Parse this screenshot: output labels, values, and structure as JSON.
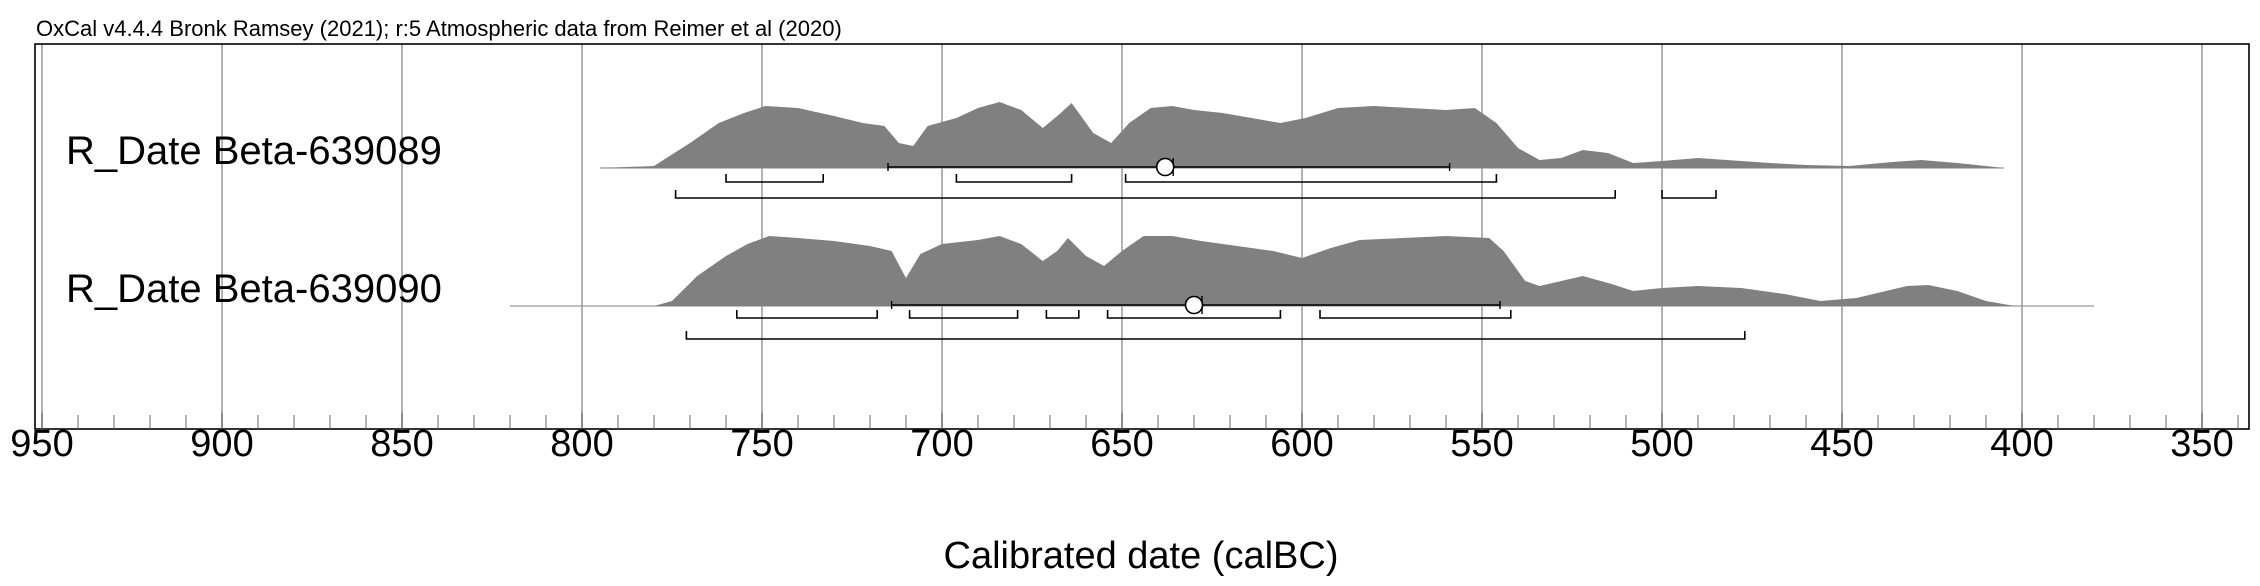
{
  "header": "OxCal v4.4.4 Bronk Ramsey (2021); r:5 Atmospheric data from Reimer et al (2020)",
  "chart_data": {
    "type": "area",
    "title": "",
    "xlabel": "Calibrated date (calBC)",
    "ylabel": "",
    "x_reversed": true,
    "xlim": [
      952,
      336
    ],
    "major_ticks": [
      950,
      900,
      850,
      800,
      750,
      700,
      650,
      600,
      550,
      500,
      450,
      400,
      350
    ],
    "minor_tick_step": 10,
    "grid": true,
    "colors": {
      "distribution": "#808080",
      "gridline": "#808080",
      "axis": "#000000",
      "range": "#000000"
    },
    "series": [
      {
        "name": "R_Date Beta-639089",
        "baseline_range": [
          795,
          405
        ],
        "distribution": [
          [
            795,
            0
          ],
          [
            780,
            0.02
          ],
          [
            770,
            0.25
          ],
          [
            762,
            0.45
          ],
          [
            755,
            0.55
          ],
          [
            749,
            0.62
          ],
          [
            740,
            0.6
          ],
          [
            730,
            0.52
          ],
          [
            722,
            0.45
          ],
          [
            716,
            0.42
          ],
          [
            712,
            0.25
          ],
          [
            708,
            0.22
          ],
          [
            704,
            0.42
          ],
          [
            696,
            0.5
          ],
          [
            690,
            0.6
          ],
          [
            684,
            0.66
          ],
          [
            678,
            0.58
          ],
          [
            672,
            0.4
          ],
          [
            667,
            0.55
          ],
          [
            664,
            0.65
          ],
          [
            658,
            0.35
          ],
          [
            653,
            0.25
          ],
          [
            648,
            0.45
          ],
          [
            642,
            0.6
          ],
          [
            636,
            0.62
          ],
          [
            630,
            0.58
          ],
          [
            622,
            0.55
          ],
          [
            614,
            0.5
          ],
          [
            606,
            0.45
          ],
          [
            599,
            0.5
          ],
          [
            590,
            0.6
          ],
          [
            580,
            0.62
          ],
          [
            570,
            0.6
          ],
          [
            560,
            0.58
          ],
          [
            552,
            0.6
          ],
          [
            546,
            0.45
          ],
          [
            540,
            0.2
          ],
          [
            534,
            0.08
          ],
          [
            528,
            0.1
          ],
          [
            522,
            0.18
          ],
          [
            515,
            0.15
          ],
          [
            508,
            0.05
          ],
          [
            500,
            0.07
          ],
          [
            490,
            0.1
          ],
          [
            482,
            0.08
          ],
          [
            470,
            0.05
          ],
          [
            460,
            0.03
          ],
          [
            448,
            0.02
          ],
          [
            436,
            0.06
          ],
          [
            428,
            0.08
          ],
          [
            418,
            0.05
          ],
          [
            410,
            0.02
          ],
          [
            405,
            0
          ]
        ],
        "ranges_68_2": [
          [
            760,
            733
          ],
          [
            696,
            664
          ],
          [
            649,
            546
          ]
        ],
        "ranges_95_4": [
          [
            774,
            513
          ],
          [
            500,
            485
          ]
        ],
        "mean_line": [
          715,
          559
        ],
        "mean": 638
      },
      {
        "name": "R_Date Beta-639090",
        "baseline_range": [
          820,
          380
        ],
        "distribution": [
          [
            820,
            0
          ],
          [
            780,
            0
          ],
          [
            775,
            0.05
          ],
          [
            768,
            0.3
          ],
          [
            760,
            0.5
          ],
          [
            754,
            0.62
          ],
          [
            748,
            0.7
          ],
          [
            740,
            0.68
          ],
          [
            730,
            0.65
          ],
          [
            720,
            0.6
          ],
          [
            714,
            0.55
          ],
          [
            710,
            0.28
          ],
          [
            706,
            0.52
          ],
          [
            700,
            0.62
          ],
          [
            690,
            0.66
          ],
          [
            684,
            0.7
          ],
          [
            678,
            0.62
          ],
          [
            672,
            0.45
          ],
          [
            668,
            0.55
          ],
          [
            665,
            0.68
          ],
          [
            660,
            0.5
          ],
          [
            655,
            0.4
          ],
          [
            650,
            0.55
          ],
          [
            644,
            0.7
          ],
          [
            636,
            0.7
          ],
          [
            628,
            0.65
          ],
          [
            618,
            0.6
          ],
          [
            608,
            0.55
          ],
          [
            600,
            0.48
          ],
          [
            592,
            0.58
          ],
          [
            584,
            0.66
          ],
          [
            572,
            0.68
          ],
          [
            560,
            0.7
          ],
          [
            548,
            0.68
          ],
          [
            544,
            0.55
          ],
          [
            538,
            0.25
          ],
          [
            534,
            0.2
          ],
          [
            528,
            0.25
          ],
          [
            522,
            0.3
          ],
          [
            514,
            0.22
          ],
          [
            508,
            0.15
          ],
          [
            500,
            0.18
          ],
          [
            490,
            0.2
          ],
          [
            478,
            0.18
          ],
          [
            466,
            0.12
          ],
          [
            456,
            0.05
          ],
          [
            446,
            0.08
          ],
          [
            432,
            0.2
          ],
          [
            426,
            0.21
          ],
          [
            418,
            0.15
          ],
          [
            410,
            0.05
          ],
          [
            402,
            0
          ],
          [
            380,
            0
          ]
        ],
        "ranges_68_2": [
          [
            757,
            718
          ],
          [
            709,
            679
          ],
          [
            671,
            662
          ],
          [
            654,
            606
          ],
          [
            595,
            542
          ]
        ],
        "ranges_95_4": [
          [
            771,
            477
          ]
        ],
        "mean_line": [
          714,
          545
        ],
        "mean": 630
      }
    ]
  }
}
